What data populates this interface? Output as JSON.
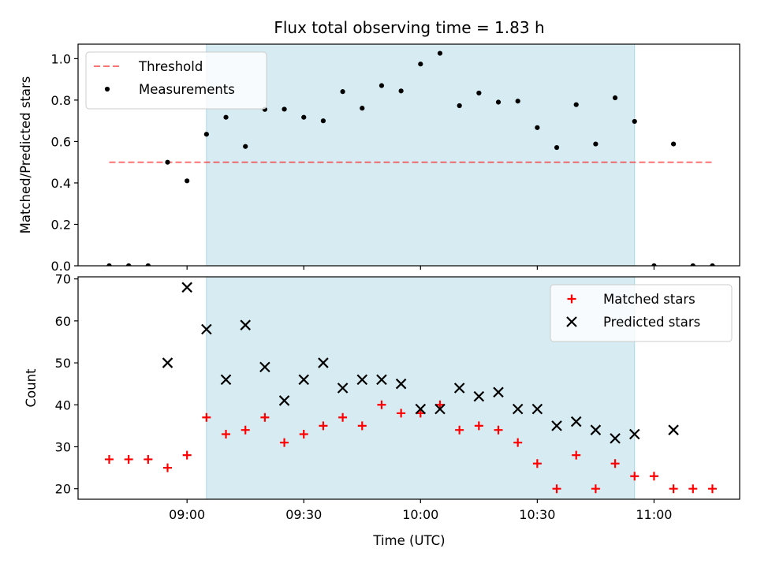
{
  "chart_data": {
    "title": "Flux total observing time = 1.83 h",
    "xlabel": "Time (UTC)",
    "xticks": [
      "09:00",
      "09:30",
      "10:00",
      "10:30",
      "11:00"
    ],
    "x_range": [
      "08:32",
      "11:22"
    ],
    "shaded_span": {
      "start": "09:05",
      "end": "10:55",
      "color": "#add8e6"
    },
    "top": {
      "type": "scatter",
      "ylabel": "Matched/Predicted stars",
      "ylim": [
        0,
        1.07
      ],
      "yticks": [
        "0.0",
        "0.2",
        "0.4",
        "0.6",
        "0.8",
        "1.0"
      ],
      "legend_position": "upper-left",
      "threshold": {
        "name": "Threshold",
        "value": 0.5,
        "x_start": "08:40",
        "x_end": "11:15",
        "color": "#ff0000"
      },
      "series": [
        {
          "name": "Measurements",
          "color": "#000000",
          "x": [
            "08:40",
            "08:45",
            "08:50",
            "08:55",
            "09:00",
            "09:05",
            "09:10",
            "09:15",
            "09:20",
            "09:25",
            "09:30",
            "09:35",
            "09:40",
            "09:45",
            "09:50",
            "09:55",
            "10:00",
            "10:05",
            "10:10",
            "10:15",
            "10:20",
            "10:25",
            "10:30",
            "10:35",
            "10:40",
            "10:45",
            "10:50",
            "10:55",
            "11:00",
            "11:05",
            "11:10",
            "11:15"
          ],
          "y": [
            0.0,
            0.0,
            0.0,
            0.5,
            0.41,
            0.635,
            0.717,
            0.576,
            0.755,
            0.756,
            0.717,
            0.7,
            0.841,
            0.761,
            0.87,
            0.844,
            0.974,
            1.026,
            0.773,
            0.834,
            0.79,
            0.795,
            0.667,
            0.571,
            0.778,
            0.588,
            0.811,
            0.697,
            0.0,
            0.588,
            0.0,
            0.0
          ]
        }
      ]
    },
    "bottom": {
      "type": "scatter",
      "ylabel": "Count",
      "ylim": [
        17.5,
        70.5
      ],
      "yticks": [
        "20",
        "30",
        "40",
        "50",
        "60",
        "70"
      ],
      "legend_position": "upper-right",
      "series": [
        {
          "name": "Matched stars",
          "marker": "plus",
          "color": "#ff0000",
          "x": [
            "08:40",
            "08:45",
            "08:50",
            "08:55",
            "09:00",
            "09:05",
            "09:10",
            "09:15",
            "09:20",
            "09:25",
            "09:30",
            "09:35",
            "09:40",
            "09:45",
            "09:50",
            "09:55",
            "10:00",
            "10:05",
            "10:10",
            "10:15",
            "10:20",
            "10:25",
            "10:30",
            "10:35",
            "10:40",
            "10:45",
            "10:50",
            "10:55",
            "11:00",
            "11:05",
            "11:10",
            "11:15"
          ],
          "y": [
            27,
            27,
            27,
            25,
            28,
            37,
            33,
            34,
            37,
            31,
            33,
            35,
            37,
            35,
            40,
            38,
            38,
            40,
            34,
            35,
            34,
            31,
            26,
            20,
            28,
            20,
            26,
            23,
            23,
            20,
            20,
            20
          ]
        },
        {
          "name": "Predicted stars",
          "marker": "x",
          "color": "#000000",
          "x": [
            "08:55",
            "09:00",
            "09:05",
            "09:10",
            "09:15",
            "09:20",
            "09:25",
            "09:30",
            "09:35",
            "09:40",
            "09:45",
            "09:50",
            "09:55",
            "10:00",
            "10:05",
            "10:10",
            "10:15",
            "10:20",
            "10:25",
            "10:30",
            "10:35",
            "10:40",
            "10:45",
            "10:50",
            "10:55",
            "11:05"
          ],
          "y": [
            50,
            68,
            58,
            46,
            59,
            49,
            41,
            46,
            50,
            44,
            46,
            46,
            45,
            39,
            39,
            44,
            42,
            43,
            39,
            39,
            35,
            36,
            34,
            32,
            33,
            34
          ]
        }
      ]
    }
  }
}
